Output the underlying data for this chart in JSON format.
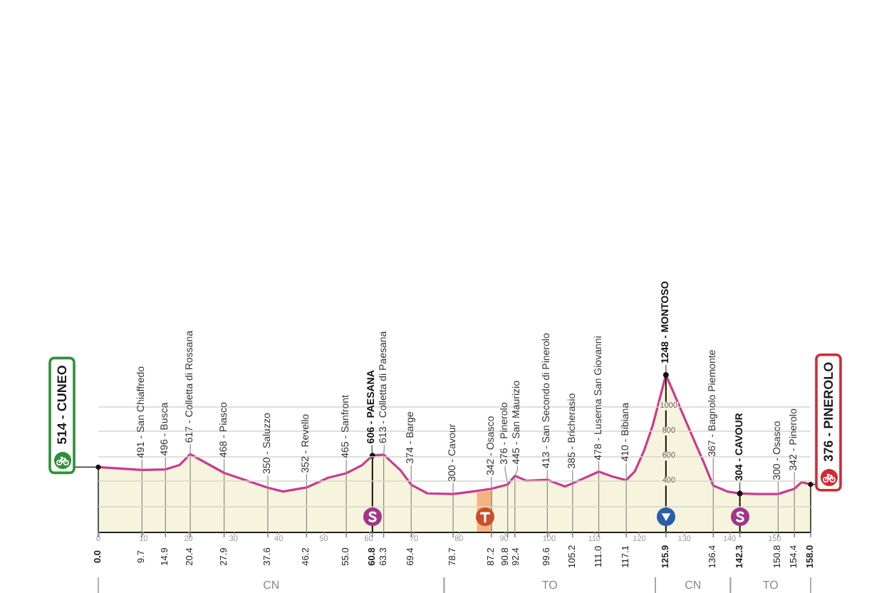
{
  "chart_data": {
    "type": "area",
    "x": [
      0,
      9.7,
      14.9,
      18,
      20.4,
      27.9,
      37.6,
      41,
      46.2,
      51,
      55,
      58.5,
      60.8,
      63.3,
      67,
      69.4,
      73,
      78.7,
      83,
      87.2,
      90.8,
      92.4,
      95,
      99.6,
      103.5,
      105.2,
      111,
      114,
      117.1,
      119,
      121,
      123,
      125.9,
      129,
      132,
      134.2,
      136.4,
      139.5,
      142.3,
      146,
      150.8,
      154.4,
      156,
      158
    ],
    "values": [
      514,
      491,
      496,
      530,
      617,
      468,
      350,
      320,
      352,
      430,
      465,
      530,
      606,
      613,
      490,
      374,
      305,
      300,
      320,
      342,
      376,
      445,
      405,
      413,
      360,
      385,
      478,
      440,
      410,
      480,
      640,
      850,
      1248,
      990,
      740,
      560,
      367,
      320,
      304,
      300,
      300,
      342,
      395,
      376
    ],
    "color": "#cc3a8e",
    "xlim": [
      0,
      158
    ],
    "xticks": [
      0,
      10,
      20,
      30,
      40,
      50,
      60,
      70,
      80,
      90,
      100,
      110,
      120,
      130,
      140,
      150
    ],
    "x2lim": [
      0,
      158
    ],
    "x2ticks": [
      {
        "value": 0,
        "label": "0.0"
      },
      9.7,
      14.9,
      20.4,
      27.9,
      37.6,
      46.2,
      {
        "value": 55,
        "label": "55.0"
      },
      60.8,
      63.3,
      69.4,
      78.7,
      87.2,
      90.8,
      92.4,
      99.6,
      105.2,
      {
        "value": 111,
        "label": "111.0"
      },
      117.1,
      125.9,
      136.4,
      142.3,
      150.8,
      154.4,
      {
        "value": 158,
        "label": "158.0"
      }
    ],
    "ylim": [
      0,
      1248
    ],
    "yticks": [
      {
        "value": 200,
        "label": null
      },
      400,
      600,
      800,
      1000
    ],
    "grid": "y",
    "bands": [
      {
        "axis": "x",
        "from": 84,
        "to": 87.4,
        "color": "#f4a86e"
      }
    ],
    "annotations": [
      {
        "text": "514 - CUNEO",
        "x": 0,
        "y": 514
      },
      {
        "text": "491 - San Chiaffredo",
        "x": 9.7,
        "y": 491
      },
      {
        "text": "496 - Busca",
        "x": 14.9,
        "y": 496
      },
      {
        "text": "617 - Colletta di Rossana",
        "x": 20.4,
        "y": 617
      },
      {
        "text": "468 - Piasco",
        "x": 27.9,
        "y": 468
      },
      {
        "text": "350 - Saluzzo",
        "x": 37.6,
        "y": 350
      },
      {
        "text": "352 - Revello",
        "x": 46.2,
        "y": 352
      },
      {
        "text": "465 - Sanfront",
        "x": 55,
        "y": 465
      },
      {
        "text": "606 - PAESANA",
        "x": 60.8,
        "y": 606
      },
      {
        "text": "613 - Colletta di Paesana",
        "x": 63.3,
        "y": 613
      },
      {
        "text": "374 - Barge",
        "x": 69.4,
        "y": 374
      },
      {
        "text": "300 - Cavour",
        "x": 78.7,
        "y": 300
      },
      {
        "text": "342 - Osasco",
        "x": 87.2,
        "y": 342
      },
      {
        "text": "376 - Pinerolo",
        "x": 90.8,
        "y": 376
      },
      {
        "text": "445 - San Maurizio",
        "x": 92.4,
        "y": 445
      },
      {
        "text": "413 - San Secondo di Pinerolo",
        "x": 99.6,
        "y": 413
      },
      {
        "text": "385 - Bricherasio",
        "x": 105.2,
        "y": 385
      },
      {
        "text": "478 - Luserna San Giovanni",
        "x": 111,
        "y": 478
      },
      {
        "text": "410 - Bibiana",
        "x": 117.1,
        "y": 410
      },
      {
        "text": "1248 - MONTOSO",
        "x": 125.9,
        "y": 1248
      },
      {
        "text": "367 - Bagnolo Piemonte",
        "x": 136.4,
        "y": 367
      },
      {
        "text": "304 - CAVOUR",
        "x": 142.3,
        "y": 304
      },
      {
        "text": "300 - Osasco",
        "x": 150.8,
        "y": 300
      },
      {
        "text": "342 - Pinerolo",
        "x": 154.4,
        "y": 342
      },
      {
        "text": "376 - PINEROLO",
        "x": 158,
        "y": 376
      },
      "CN",
      "TO",
      "CN",
      "TO"
    ]
  }
}
